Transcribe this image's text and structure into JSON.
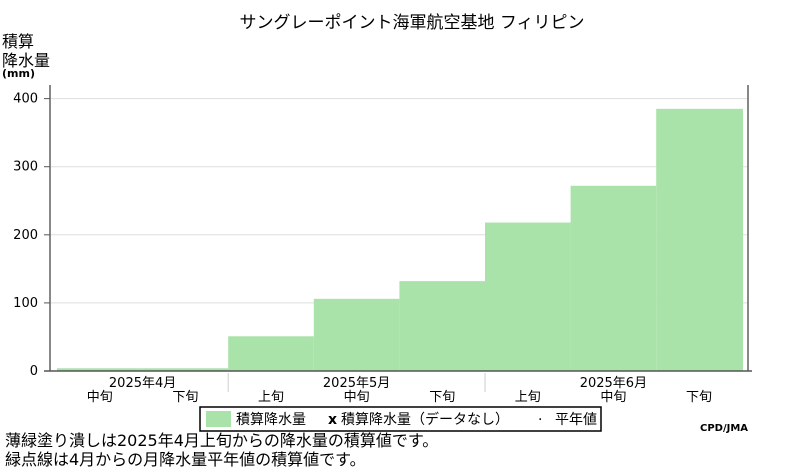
{
  "chart_data": {
    "type": "bar",
    "title": "サングレーポイント海軍航空基地 フィリピン",
    "ylabel_lines": [
      "積算",
      "降水量"
    ],
    "unit": "(mm)",
    "ylim": [
      0,
      420
    ],
    "yticks": [
      0,
      100,
      200,
      300,
      400
    ],
    "grid": true,
    "periods": [
      "2025年4月 中旬",
      "2025年4月 下旬",
      "2025年5月 上旬",
      "2025年5月 中旬",
      "2025年5月 下旬",
      "2025年6月 上旬",
      "2025年6月 中旬",
      "2025年6月 下旬"
    ],
    "period_labels": [
      "中旬",
      "下旬",
      "上旬",
      "中旬",
      "下旬",
      "上旬",
      "中旬",
      "下旬"
    ],
    "months": [
      {
        "label": "2025年4月",
        "start": 0,
        "span": 2
      },
      {
        "label": "2025年5月",
        "start": 2,
        "span": 3
      },
      {
        "label": "2025年6月",
        "start": 5,
        "span": 3
      }
    ],
    "series": [
      {
        "name": "積算降水量",
        "color": "#aae3aa",
        "values": [
          4,
          4,
          51,
          106,
          132,
          218,
          272,
          385
        ]
      }
    ],
    "legend": {
      "placement": "bottom-center",
      "items": [
        "積算降水量",
        "積算降水量（データなし）",
        "平年値"
      ],
      "no_data_marker": "x",
      "normal_marker": "·"
    },
    "credit": "CPD/JMA"
  },
  "notes": [
    "薄緑塗り潰しは2025年4月上旬からの降水量の積算値です。",
    "緑点線は4月からの月降水量平年値の積算値です。"
  ],
  "colors": {
    "bar": "#aae3aa",
    "grid": "#dddddd",
    "frame": "#888888"
  }
}
